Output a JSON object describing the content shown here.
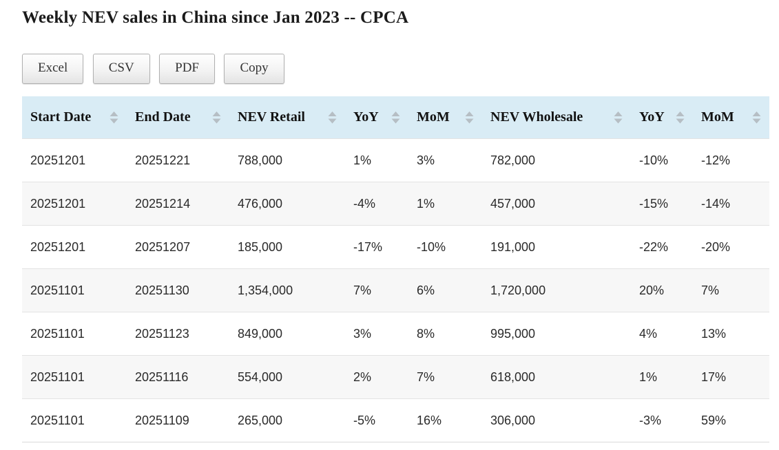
{
  "page_title": "Weekly NEV sales in China since Jan 2023 -- CPCA",
  "toolbar": {
    "excel_label": "Excel",
    "csv_label": "CSV",
    "pdf_label": "PDF",
    "copy_label": "Copy"
  },
  "table": {
    "columns": [
      {
        "key": "start-date",
        "label": "Start Date"
      },
      {
        "key": "end-date",
        "label": "End Date"
      },
      {
        "key": "nev-retail",
        "label": "NEV Retail"
      },
      {
        "key": "retail-yoy",
        "label": "YoY"
      },
      {
        "key": "retail-mom",
        "label": "MoM"
      },
      {
        "key": "nev-wholesale",
        "label": "NEV Wholesale"
      },
      {
        "key": "wholesale-yoy",
        "label": "YoY"
      },
      {
        "key": "wholesale-mom",
        "label": "MoM"
      }
    ],
    "rows": [
      [
        "20251201",
        "20251221",
        "788,000",
        "1%",
        "3%",
        "782,000",
        "-10%",
        "-12%"
      ],
      [
        "20251201",
        "20251214",
        "476,000",
        "-4%",
        "1%",
        "457,000",
        "-15%",
        "-14%"
      ],
      [
        "20251201",
        "20251207",
        "185,000",
        "-17%",
        "-10%",
        "191,000",
        "-22%",
        "-20%"
      ],
      [
        "20251101",
        "20251130",
        "1,354,000",
        "7%",
        "6%",
        "1,720,000",
        "20%",
        "7%"
      ],
      [
        "20251101",
        "20251123",
        "849,000",
        "3%",
        "8%",
        "995,000",
        "4%",
        "13%"
      ],
      [
        "20251101",
        "20251116",
        "554,000",
        "2%",
        "7%",
        "618,000",
        "1%",
        "17%"
      ],
      [
        "20251101",
        "20251109",
        "265,000",
        "-5%",
        "16%",
        "306,000",
        "-3%",
        "59%"
      ]
    ]
  },
  "colors": {
    "header_bg": "#d9ecf5",
    "stripe_bg": "#f7f7f7",
    "row_border": "#e3e3e3",
    "sort_icon": "#b6bec4",
    "button_border": "#b0b0b0"
  }
}
